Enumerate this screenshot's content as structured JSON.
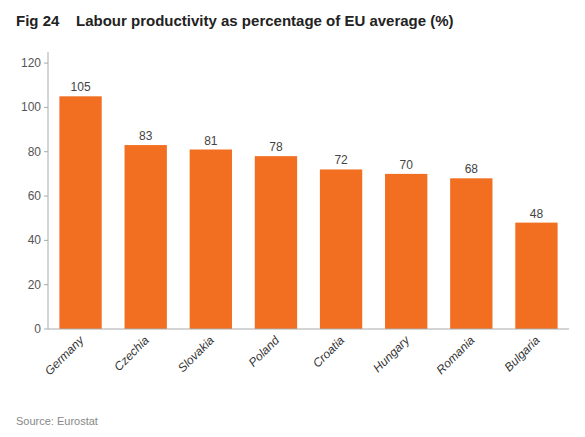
{
  "chart_data": {
    "type": "bar",
    "title": "Fig 24    Labour productivity as percentage of EU average (%)",
    "categories": [
      "Germany",
      "Czechia",
      "Slovakia",
      "Poland",
      "Croatia",
      "Hungary",
      "Romania",
      "Bulgaria"
    ],
    "values": [
      105,
      83,
      81,
      78,
      72,
      70,
      68,
      48
    ],
    "color": "#F26F21",
    "ylim": [
      0,
      125
    ],
    "yticks": [
      0,
      20,
      40,
      60,
      80,
      100,
      120
    ],
    "grid": false,
    "data_labels": true,
    "annotations": [
      "Source: Eurostat"
    ]
  }
}
